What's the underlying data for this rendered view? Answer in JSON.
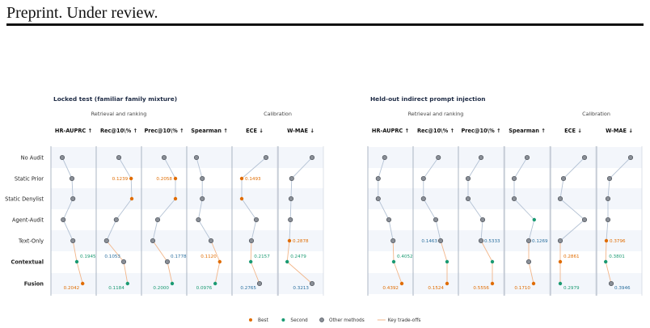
{
  "header": {
    "text": "Preprint. Under review."
  },
  "chart_data": {
    "type": "scatter",
    "rows": [
      "No Audit",
      "Static Prior",
      "Static Denylist",
      "Agent-Audit",
      "Text-Only",
      "Contextual",
      "Fusion"
    ],
    "bold_rows": [
      "Contextual",
      "Fusion"
    ],
    "metrics": [
      "HR-AUPRC ↑",
      "Rec@10\\% ↑",
      "Prec@10\\% ↑",
      "Spearman ↑",
      "ECE ↓",
      "W-MAE ↓"
    ],
    "groups": [
      {
        "label": "Retrieval and ranking",
        "metrics": [
          0,
          1,
          2
        ]
      },
      {
        "label": "Calibration",
        "metrics": [
          4,
          5
        ]
      }
    ],
    "colors": {
      "best": "#e06c00",
      "second": "#1a9a72",
      "other": "#8a8f97",
      "tradeoff": "#f2b68a",
      "link": "#b4c2d4"
    },
    "legend": [
      {
        "label": "Best",
        "kind": "best"
      },
      {
        "label": "Second",
        "kind": "second"
      },
      {
        "label": "Other methods",
        "kind": "other"
      },
      {
        "label": "Key trade-offs",
        "kind": "tradeoff"
      }
    ],
    "panels": [
      {
        "title": "Locked test (familiar family mixture)",
        "metrics": [
          {
            "points": [
              {
                "row": 0,
                "v": 0.15,
                "c": "other"
              },
              {
                "row": 1,
                "v": 0.45,
                "c": "other"
              },
              {
                "row": 2,
                "v": 0.48,
                "c": "other"
              },
              {
                "row": 3,
                "v": 0.18,
                "c": "other"
              },
              {
                "row": 4,
                "v": 0.48,
                "c": "other"
              },
              {
                "row": 5,
                "v": 0.6,
                "c": "second",
                "label": "0.1945"
              },
              {
                "row": 6,
                "v": 0.78,
                "c": "best",
                "label": "0.2042"
              }
            ]
          },
          {
            "points": [
              {
                "row": 0,
                "v": 0.5,
                "c": "other"
              },
              {
                "row": 1,
                "v": 0.88,
                "c": "best",
                "label": "0.1239"
              },
              {
                "row": 2,
                "v": 0.9,
                "c": "best"
              },
              {
                "row": 3,
                "v": 0.42,
                "c": "other"
              },
              {
                "row": 4,
                "v": 0.12,
                "c": "other"
              },
              {
                "row": 5,
                "v": 0.65,
                "c": "other",
                "label": "0.1053"
              },
              {
                "row": 6,
                "v": 0.77,
                "c": "second",
                "label": "0.1184"
              }
            ]
          },
          {
            "points": [
              {
                "row": 0,
                "v": 0.5,
                "c": "other"
              },
              {
                "row": 1,
                "v": 0.85,
                "c": "best",
                "label": "0.2058"
              },
              {
                "row": 2,
                "v": 0.85,
                "c": "best"
              },
              {
                "row": 3,
                "v": 0.3,
                "c": "other"
              },
              {
                "row": 4,
                "v": 0.15,
                "c": "other"
              },
              {
                "row": 5,
                "v": 0.6,
                "c": "other",
                "label": "0.1778"
              },
              {
                "row": 6,
                "v": 0.75,
                "c": "second",
                "label": "0.2000"
              }
            ]
          },
          {
            "points": [
              {
                "row": 0,
                "v": 0.1,
                "c": "other"
              },
              {
                "row": 1,
                "v": 0.28,
                "c": "other"
              },
              {
                "row": 2,
                "v": 0.28,
                "c": "other"
              },
              {
                "row": 3,
                "v": 0.16,
                "c": "other"
              },
              {
                "row": 4,
                "v": 0.55,
                "c": "other"
              },
              {
                "row": 5,
                "v": 0.82,
                "c": "best",
                "label": "0.1120"
              },
              {
                "row": 6,
                "v": 0.68,
                "c": "second",
                "label": "0.0976"
              }
            ]
          },
          {
            "points": [
              {
                "row": 0,
                "v": 0.85,
                "c": "other"
              },
              {
                "row": 1,
                "v": 0.1,
                "c": "best",
                "label": "0.1493"
              },
              {
                "row": 2,
                "v": 0.1,
                "c": "best"
              },
              {
                "row": 3,
                "v": 0.55,
                "c": "other"
              },
              {
                "row": 4,
                "v": 0.4,
                "c": "other"
              },
              {
                "row": 5,
                "v": 0.38,
                "c": "second",
                "label": "0.2157"
              },
              {
                "row": 6,
                "v": 0.65,
                "c": "other",
                "label": "0.2765"
              }
            ]
          },
          {
            "points": [
              {
                "row": 0,
                "v": 0.85,
                "c": "other"
              },
              {
                "row": 1,
                "v": 0.22,
                "c": "other"
              },
              {
                "row": 2,
                "v": 0.2,
                "c": "other"
              },
              {
                "row": 3,
                "v": 0.18,
                "c": "other"
              },
              {
                "row": 4,
                "v": 0.15,
                "c": "best",
                "label": "0.2878"
              },
              {
                "row": 5,
                "v": 0.08,
                "c": "second",
                "label": "0.2479"
              },
              {
                "row": 6,
                "v": 0.85,
                "c": "other",
                "label": "0.3213"
              }
            ]
          }
        ]
      },
      {
        "title": "Held-out indirect prompt injection",
        "metrics": [
          {
            "points": [
              {
                "row": 0,
                "v": 0.32,
                "c": "other"
              },
              {
                "row": 1,
                "v": 0.12,
                "c": "other"
              },
              {
                "row": 2,
                "v": 0.12,
                "c": "other"
              },
              {
                "row": 3,
                "v": 0.45,
                "c": "other"
              },
              {
                "row": 4,
                "v": 0.58,
                "c": "other"
              },
              {
                "row": 5,
                "v": 0.6,
                "c": "second",
                "label": "0.4052"
              },
              {
                "row": 6,
                "v": 0.85,
                "c": "best",
                "label": "0.4392"
              }
            ]
          },
          {
            "points": [
              {
                "row": 0,
                "v": 0.58,
                "c": "other"
              },
              {
                "row": 1,
                "v": 0.12,
                "c": "other"
              },
              {
                "row": 2,
                "v": 0.12,
                "c": "other"
              },
              {
                "row": 3,
                "v": 0.5,
                "c": "other"
              },
              {
                "row": 4,
                "v": 0.65,
                "c": "other",
                "label": "0.1463"
              },
              {
                "row": 5,
                "v": 0.85,
                "c": "second"
              },
              {
                "row": 6,
                "v": 0.85,
                "c": "best",
                "label": "0.1524"
              }
            ]
          },
          {
            "points": [
              {
                "row": 0,
                "v": 0.5,
                "c": "other"
              },
              {
                "row": 1,
                "v": 0.1,
                "c": "other"
              },
              {
                "row": 2,
                "v": 0.1,
                "c": "other"
              },
              {
                "row": 3,
                "v": 0.55,
                "c": "other"
              },
              {
                "row": 4,
                "v": 0.5,
                "c": "other",
                "label": "0.5333"
              },
              {
                "row": 5,
                "v": 0.85,
                "c": "second"
              },
              {
                "row": 6,
                "v": 0.85,
                "c": "best",
                "label": "0.5556"
              }
            ]
          },
          {
            "points": [
              {
                "row": 0,
                "v": 0.5,
                "c": "other"
              },
              {
                "row": 1,
                "v": 0.1,
                "c": "other"
              },
              {
                "row": 2,
                "v": 0.1,
                "c": "other"
              },
              {
                "row": 3,
                "v": 0.72,
                "c": "second"
              },
              {
                "row": 4,
                "v": 0.55,
                "c": "other",
                "label": "0.1269"
              },
              {
                "row": 5,
                "v": 0.55,
                "c": "other"
              },
              {
                "row": 6,
                "v": 0.7,
                "c": "best",
                "label": "0.1710"
              }
            ]
          },
          {
            "points": [
              {
                "row": 0,
                "v": 0.85,
                "c": "other"
              },
              {
                "row": 1,
                "v": 0.2,
                "c": "other"
              },
              {
                "row": 2,
                "v": 0.1,
                "c": "other"
              },
              {
                "row": 3,
                "v": 0.85,
                "c": "other"
              },
              {
                "row": 4,
                "v": 0.1,
                "c": "other"
              },
              {
                "row": 5,
                "v": 0.1,
                "c": "best",
                "label": "0.2861"
              },
              {
                "row": 6,
                "v": 0.1,
                "c": "second",
                "label": "0.2979"
              }
            ]
          },
          {
            "points": [
              {
                "row": 0,
                "v": 0.85,
                "c": "other"
              },
              {
                "row": 1,
                "v": 0.2,
                "c": "other"
              },
              {
                "row": 2,
                "v": 0.15,
                "c": "other"
              },
              {
                "row": 3,
                "v": 0.15,
                "c": "other"
              },
              {
                "row": 4,
                "v": 0.1,
                "c": "best",
                "label": "0.3796"
              },
              {
                "row": 5,
                "v": 0.08,
                "c": "second",
                "label": "0.3801"
              },
              {
                "row": 6,
                "v": 0.25,
                "c": "other",
                "label": "0.3946"
              }
            ]
          }
        ]
      }
    ]
  }
}
